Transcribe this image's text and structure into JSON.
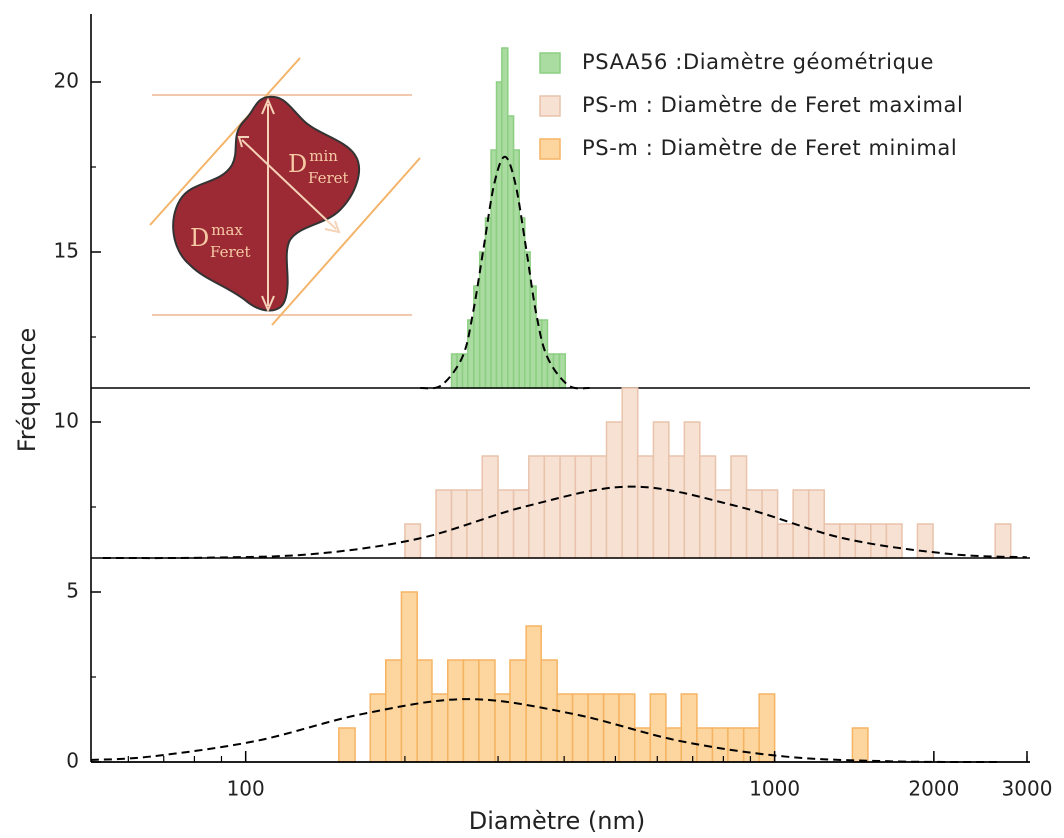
{
  "chart_data": {
    "type": "histogram",
    "x_label": "Diamètre (nm)",
    "y_label": "Fréquence",
    "xscale": "log",
    "xlim": [
      51,
      3000
    ],
    "ylim": [
      0,
      22
    ],
    "xticks": [
      100,
      1000,
      2000,
      3000
    ],
    "xminorticks": [
      60,
      70,
      80,
      90,
      200,
      300,
      400,
      500,
      600,
      700,
      800,
      900,
      2000,
      3000
    ],
    "yticks": [
      0,
      5,
      10,
      15,
      20
    ],
    "yminorticks": [
      2.5,
      7.5,
      12.5,
      17.5
    ],
    "legend": "upper right",
    "series": [
      {
        "name": "PSAA56 :Diamètre géométrique",
        "color": "#aadba1",
        "edgecolor": "#8ccf82",
        "offset": 11,
        "bins": [
          245,
          251,
          257,
          263,
          270,
          277,
          284,
          291,
          298,
          305,
          313,
          321,
          329,
          337,
          345,
          354,
          363,
          372,
          382,
          392,
          402
        ],
        "values": [
          1,
          1,
          1,
          2,
          3,
          4,
          5,
          7,
          9,
          10,
          8,
          7,
          5,
          4,
          3,
          2,
          2,
          1,
          1,
          1
        ],
        "fit": {
          "x": [
            213.8,
            234.4,
            257,
            269,
            281.8,
            295,
            309,
            323.6,
            338.8,
            354,
            371.5,
            407.4,
            446.7
          ],
          "y": [
            0,
            0.08,
            0.92,
            2.21,
            4.13,
            6.0,
            6.8,
            6.0,
            4.13,
            2.21,
            0.92,
            0.08,
            0
          ]
        }
      },
      {
        "name": "PS-m : Diamètre de Feret maximal",
        "color": "#f6e1d3",
        "edgecolor": "#e9c3ab",
        "offset": 6,
        "bins": [
          200,
          214,
          229,
          245,
          262,
          280,
          300,
          321,
          343,
          367,
          393,
          420,
          450,
          481,
          515,
          551,
          590,
          631,
          675,
          722,
          773,
          827,
          885,
          947,
          1013,
          1084,
          1160,
          1241,
          1328,
          1421,
          1520,
          1627,
          1741,
          1862,
          1993,
          2132,
          2282,
          2441,
          2612,
          2795,
          2990
        ],
        "values": [
          1,
          0,
          2,
          2,
          2,
          3,
          2,
          2,
          3,
          3,
          3,
          3,
          3,
          4,
          5,
          3,
          4,
          3,
          4,
          3,
          2,
          3,
          2,
          2,
          1,
          2,
          2,
          1,
          1,
          1,
          1,
          1,
          0,
          1,
          0,
          0,
          0,
          0,
          1,
          0
        ],
        "fit": {
          "x": [
            53.7,
            85.1,
            134.9,
            213.8,
            338.8,
            537,
            851,
            1349,
            2138,
            3000
          ],
          "y": [
            0,
            0.01,
            0.12,
            0.58,
            1.52,
            2.1,
            1.52,
            0.58,
            0.12,
            0.02
          ]
        }
      },
      {
        "name": "PS-m : Diamètre de Feret minimal",
        "color": "#fcd59f",
        "edgecolor": "#f6b463",
        "offset": 0,
        "bins": [
          150,
          161,
          172,
          184,
          197,
          211,
          225,
          241,
          258,
          276,
          296,
          316,
          339,
          362,
          388,
          415,
          444,
          475,
          508,
          544,
          582,
          623,
          666,
          713,
          763,
          816,
          874,
          935,
          1000,
          1070,
          1145,
          1225,
          1311,
          1403,
          1501
        ],
        "values": [
          1,
          0,
          2,
          3,
          5,
          3,
          2,
          3,
          3,
          3,
          2,
          3,
          4,
          3,
          2,
          2,
          2,
          2,
          2,
          1,
          2,
          1,
          2,
          1,
          1,
          1,
          1,
          2,
          0,
          0,
          0,
          0,
          0,
          1
        ],
        "fit": {
          "x": [
            51,
            66.1,
            104.7,
            166,
            263,
            417,
            661,
            1047,
            1660,
            2630
          ],
          "y": [
            0.06,
            0.16,
            0.62,
            1.41,
            1.85,
            1.41,
            0.62,
            0.16,
            0.02,
            0
          ]
        }
      }
    ],
    "inset": {
      "max_label": {
        "symbol": "D",
        "sup": "max",
        "sub": "Feret"
      },
      "min_label": {
        "symbol": "D",
        "sup": "min",
        "sub": "Feret"
      }
    }
  }
}
